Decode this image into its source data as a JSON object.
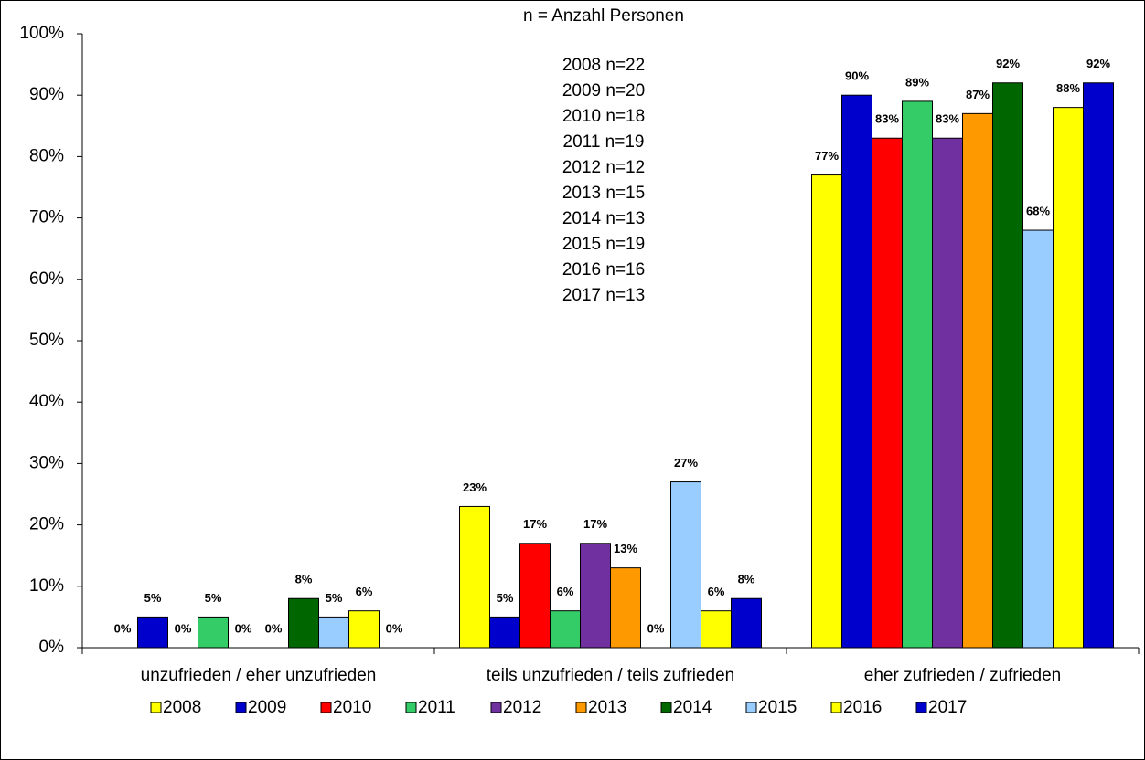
{
  "chart_data": {
    "type": "bar",
    "title": "n = Anzahl Personen",
    "annotations": [
      "2008 n=22",
      "2009 n=20",
      "2010 n=18",
      "2011 n=19",
      "2012 n=12",
      "2013 n=15",
      "2014 n=13",
      "2015 n=19",
      "2016 n=16",
      "2017 n=13"
    ],
    "categories": [
      "unzufrieden / eher unzufrieden",
      "teils unzufrieden / teils zufrieden",
      "eher zufrieden / zufrieden"
    ],
    "series": [
      {
        "name": "2008",
        "color": "#ffff00",
        "values": [
          0,
          23,
          77
        ],
        "value_labels": [
          "0%",
          "23%",
          "77%"
        ]
      },
      {
        "name": "2009",
        "color": "#0000cc",
        "values": [
          5,
          5,
          90
        ],
        "value_labels": [
          "5%",
          "5%",
          "90%"
        ]
      },
      {
        "name": "2010",
        "color": "#ff0000",
        "values": [
          0,
          17,
          83
        ],
        "value_labels": [
          "0%",
          "17%",
          "83%"
        ]
      },
      {
        "name": "2011",
        "color": "#33cc66",
        "values": [
          5,
          6,
          89
        ],
        "value_labels": [
          "5%",
          "6%",
          "89%"
        ]
      },
      {
        "name": "2012",
        "color": "#7030a0",
        "values": [
          0,
          17,
          83
        ],
        "value_labels": [
          "0%",
          "17%",
          "83%"
        ]
      },
      {
        "name": "2013",
        "color": "#ff9900",
        "values": [
          0,
          13,
          87
        ],
        "value_labels": [
          "0%",
          "13%",
          "87%"
        ]
      },
      {
        "name": "2014",
        "color": "#006600",
        "values": [
          8,
          0,
          92
        ],
        "value_labels": [
          "8%",
          "0%",
          "92%"
        ]
      },
      {
        "name": "2015",
        "color": "#99ccff",
        "values": [
          5,
          27,
          68
        ],
        "value_labels": [
          "5%",
          "27%",
          "68%"
        ]
      },
      {
        "name": "2016",
        "color": "#ffff00",
        "values": [
          6,
          6,
          88
        ],
        "value_labels": [
          "6%",
          "6%",
          "88%"
        ]
      },
      {
        "name": "2017",
        "color": "#0000cc",
        "values": [
          0,
          8,
          92
        ],
        "value_labels": [
          "0%",
          "8%",
          "92%"
        ]
      }
    ],
    "ylim": [
      0,
      100
    ],
    "yticks": [
      {
        "value": 0,
        "label": "0%"
      },
      {
        "value": 10,
        "label": "10%"
      },
      {
        "value": 20,
        "label": "20%"
      },
      {
        "value": 30,
        "label": "30%"
      },
      {
        "value": 40,
        "label": "40%"
      },
      {
        "value": 50,
        "label": "50%"
      },
      {
        "value": 60,
        "label": "60%"
      },
      {
        "value": 70,
        "label": "70%"
      },
      {
        "value": 80,
        "label": "80%"
      },
      {
        "value": 90,
        "label": "90%"
      },
      {
        "value": 100,
        "label": "100%"
      }
    ],
    "legend": "bottom"
  }
}
